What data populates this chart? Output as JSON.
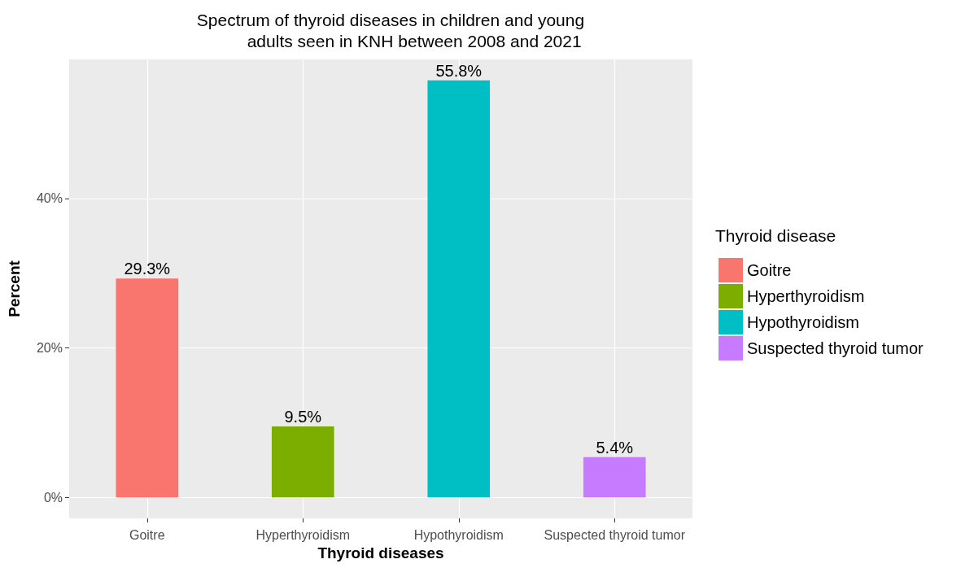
{
  "chart_data": {
    "type": "bar",
    "title": "Spectrum of thyroid diseases in children and young\n          adults seen in KNH between 2008 and 2021",
    "xlabel": "Thyroid diseases",
    "ylabel": "Percent",
    "legend_title": "Thyroid disease",
    "categories": [
      "Goitre",
      "Hyperthyroidism",
      "Hypothyroidism",
      "Suspected thyroid tumor"
    ],
    "series": [
      {
        "name": "Goitre",
        "color": "#f8766d",
        "values": [
          29.3,
          null,
          null,
          null
        ],
        "value_labels": [
          "29.3%",
          null,
          null,
          null
        ]
      },
      {
        "name": "Hyperthyroidism",
        "color": "#7cae00",
        "values": [
          null,
          9.5,
          null,
          null
        ],
        "value_labels": [
          null,
          "9.5%",
          null,
          null
        ]
      },
      {
        "name": "Hypothyroidism",
        "color": "#00bfc4",
        "values": [
          null,
          null,
          55.8,
          null
        ],
        "value_labels": [
          null,
          null,
          "55.8%",
          null
        ]
      },
      {
        "name": "Suspected thyroid tumor",
        "color": "#c77cff",
        "values": [
          null,
          null,
          null,
          5.4
        ],
        "value_labels": [
          null,
          null,
          null,
          "5.4%"
        ]
      }
    ],
    "ylim": [
      -2.79,
      58.59
    ],
    "yticks": [
      {
        "value": 0,
        "label": "0%"
      },
      {
        "value": 20,
        "label": "20%"
      },
      {
        "value": 40,
        "label": "40%"
      }
    ],
    "grid": true,
    "legend": "right"
  }
}
